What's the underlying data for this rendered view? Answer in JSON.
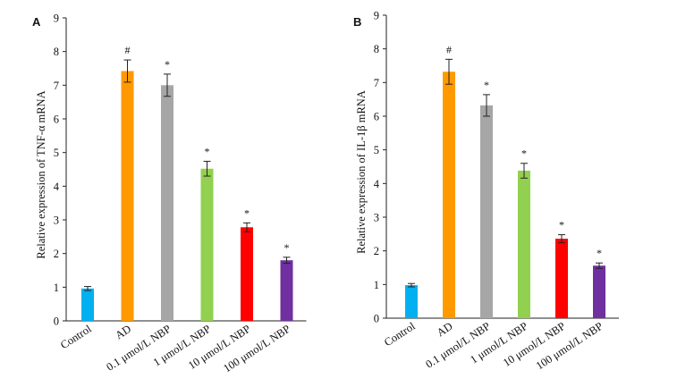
{
  "chart_data": [
    {
      "panel": "A",
      "type": "bar",
      "ylabel": "Relative expression of TNF-α mRNA",
      "ylim": [
        0,
        9
      ],
      "yticks": [
        "0",
        "1",
        "2",
        "3",
        "4",
        "5",
        "6",
        "7",
        "8",
        "9"
      ],
      "categories": [
        "Control",
        "AD",
        "0.1 μmol/L NBP",
        "1 μmol/L NBP",
        "10 μmol/L NBP",
        "100 μmol/L NBP"
      ],
      "values": [
        0.96,
        7.42,
        7.0,
        4.52,
        2.78,
        1.8
      ],
      "errors": [
        0.06,
        0.33,
        0.33,
        0.22,
        0.13,
        0.09
      ],
      "marks": [
        "",
        "#",
        "*",
        "*",
        "*",
        "*"
      ],
      "colors": [
        "#00b0f0",
        "#ff9900",
        "#a6a6a6",
        "#92d050",
        "#ff0000",
        "#7030a0"
      ],
      "grid": false
    },
    {
      "panel": "B",
      "type": "bar",
      "ylabel": "Relative expression of IL-1β mRNA",
      "ylim": [
        0,
        9
      ],
      "yticks": [
        "0",
        "1",
        "2",
        "3",
        "4",
        "5",
        "6",
        "7",
        "8",
        "9"
      ],
      "categories": [
        "Control",
        "AD",
        "0.1 μmol/L NBP",
        "1 μmol/L NBP",
        "10 μmol/L NBP",
        "100 μmol/L NBP"
      ],
      "values": [
        0.98,
        7.32,
        6.32,
        4.38,
        2.36,
        1.56
      ],
      "errors": [
        0.05,
        0.37,
        0.32,
        0.22,
        0.12,
        0.08
      ],
      "marks": [
        "",
        "#",
        "*",
        "*",
        "*",
        "*"
      ],
      "colors": [
        "#00b0f0",
        "#ff9900",
        "#a6a6a6",
        "#92d050",
        "#ff0000",
        "#7030a0"
      ],
      "grid": false
    }
  ]
}
